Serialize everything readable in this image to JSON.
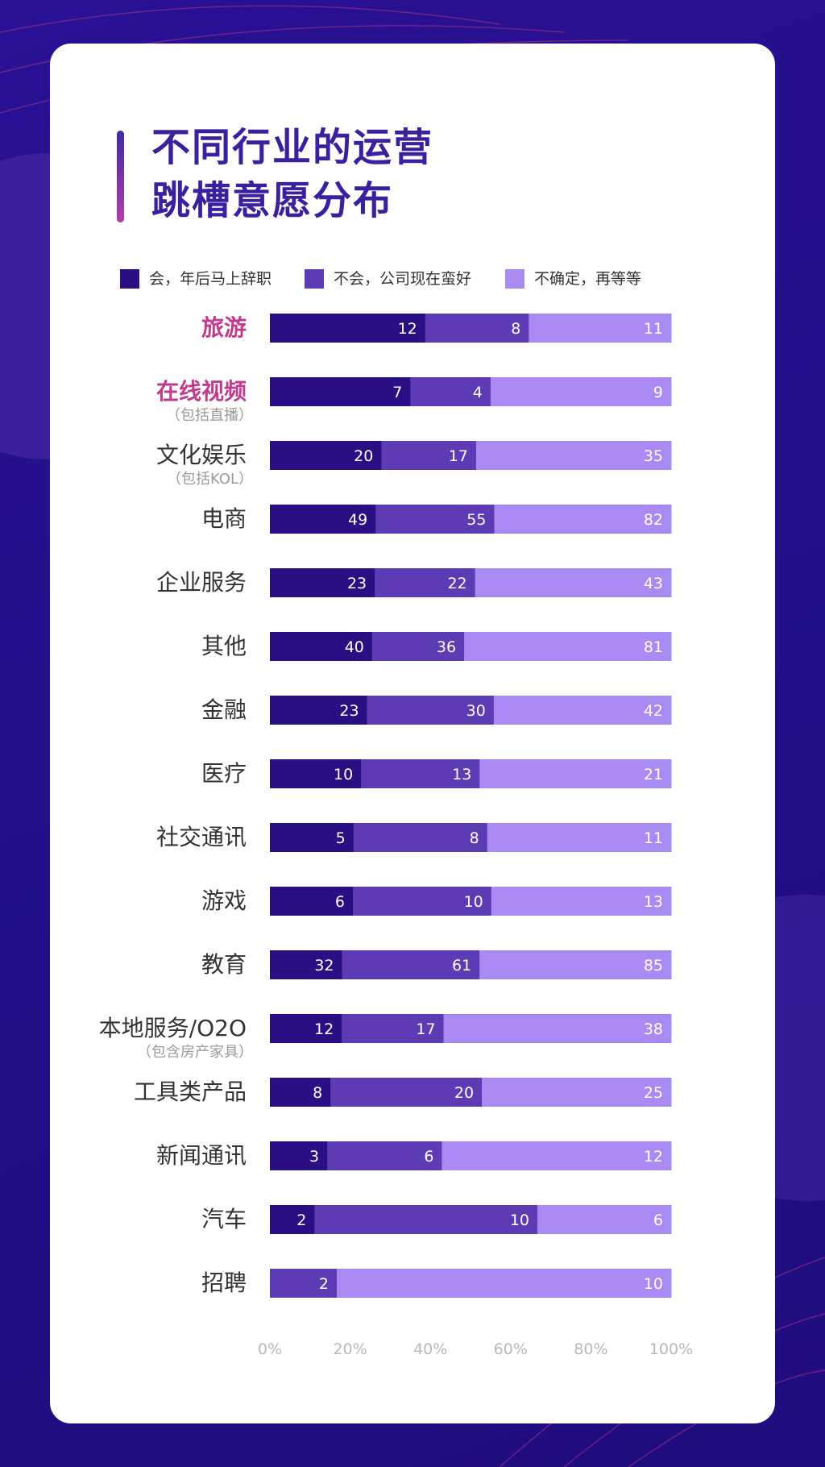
{
  "title": {
    "line1": "不同行业的运营",
    "line2": "跳槽意愿分布"
  },
  "colors": {
    "s1": "#2a0f84",
    "s2": "#5d3bb4",
    "s3": "#a98af2",
    "highlight": "#c23a8c",
    "category": "#333333",
    "sublabel": "#9a9a9a",
    "tick": "#b8b8b8"
  },
  "chart_data": {
    "type": "bar",
    "orientation": "horizontal",
    "stacked": "percent",
    "categories": [
      "旅游",
      "在线视频",
      "文化娱乐",
      "电商",
      "企业服务",
      "其他",
      "金融",
      "医疗",
      "社交通讯",
      "游戏",
      "教育",
      "本地服务/O2O",
      "工具类产品",
      "新闻通讯",
      "汽车",
      "招聘"
    ],
    "sublabels": [
      "",
      "（包括直播）",
      "（包括KOL）",
      "",
      "",
      "",
      "",
      "",
      "",
      "",
      "",
      "（包含房产家具）",
      "",
      "",
      "",
      ""
    ],
    "highlighted": [
      true,
      true,
      false,
      false,
      false,
      false,
      false,
      false,
      false,
      false,
      false,
      false,
      false,
      false,
      false,
      false
    ],
    "series": [
      {
        "name": "会，年后马上辞职",
        "values": [
          12,
          7,
          20,
          49,
          23,
          40,
          23,
          10,
          5,
          6,
          32,
          12,
          8,
          3,
          2,
          0
        ]
      },
      {
        "name": "不会，公司现在蛮好",
        "values": [
          8,
          4,
          17,
          55,
          22,
          36,
          30,
          13,
          8,
          10,
          61,
          17,
          20,
          6,
          10,
          2
        ]
      },
      {
        "name": "不确定，再等等",
        "values": [
          11,
          9,
          35,
          82,
          43,
          81,
          42,
          21,
          11,
          13,
          85,
          38,
          25,
          12,
          6,
          10
        ]
      }
    ],
    "xticks": [
      "0%",
      "20%",
      "40%",
      "60%",
      "80%",
      "100%"
    ],
    "xlim": [
      0,
      100
    ],
    "legend": "top",
    "grid": false
  }
}
